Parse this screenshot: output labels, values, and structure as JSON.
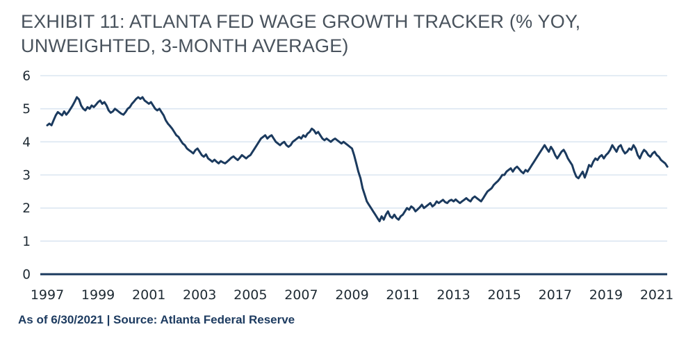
{
  "title": {
    "line1": "EXHIBIT 11: ATLANTA FED WAGE GROWTH TRACKER (% YOY,",
    "line2": "UNWEIGHTED, 3-MONTH AVERAGE)"
  },
  "footer": {
    "text": "As of 6/30/2021 | Source: Atlanta Federal Reserve"
  },
  "colors": {
    "line": "#1b3a5e",
    "axis": "#1b3a5e",
    "grid": "#dbe6f1",
    "tick_text": "#1e2a33",
    "title_text": "#48525c",
    "footer_text": "#1d3b60",
    "background": "#ffffff"
  },
  "chart_data": {
    "type": "line",
    "title": "EXHIBIT 11: ATLANTA FED WAGE GROWTH TRACKER (% YOY, UNWEIGHTED, 3-MONTH AVERAGE)",
    "series_name": "Atlanta Fed Wage Growth Tracker (unweighted, 3-month average)",
    "x_start": 1997,
    "frequency": "monthly",
    "x_end_label": "6/30/2021",
    "x_tick_labels": [
      "1997",
      "1999",
      "2001",
      "2003",
      "2005",
      "2007",
      "2009",
      "2011",
      "2013",
      "2015",
      "2017",
      "2019",
      "2021"
    ],
    "y_ticks": [
      0,
      1,
      2,
      3,
      4,
      5,
      6
    ],
    "ylim": [
      0,
      6
    ],
    "grid": "horizontal",
    "legend": "none",
    "values": [
      4.5,
      4.55,
      4.5,
      4.65,
      4.8,
      4.9,
      4.85,
      4.8,
      4.92,
      4.82,
      4.9,
      5.0,
      5.1,
      5.22,
      5.35,
      5.28,
      5.1,
      5.0,
      4.95,
      5.05,
      5.0,
      5.1,
      5.05,
      5.12,
      5.2,
      5.25,
      5.15,
      5.2,
      5.1,
      4.95,
      4.88,
      4.92,
      5.0,
      4.95,
      4.9,
      4.85,
      4.82,
      4.9,
      5.0,
      5.05,
      5.15,
      5.22,
      5.3,
      5.35,
      5.3,
      5.35,
      5.25,
      5.2,
      5.15,
      5.2,
      5.1,
      5.0,
      4.95,
      5.0,
      4.9,
      4.8,
      4.65,
      4.55,
      4.48,
      4.4,
      4.3,
      4.2,
      4.15,
      4.05,
      3.95,
      3.9,
      3.8,
      3.75,
      3.7,
      3.65,
      3.75,
      3.8,
      3.7,
      3.6,
      3.55,
      3.62,
      3.5,
      3.45,
      3.4,
      3.46,
      3.4,
      3.35,
      3.42,
      3.38,
      3.35,
      3.4,
      3.46,
      3.52,
      3.56,
      3.5,
      3.45,
      3.52,
      3.6,
      3.55,
      3.5,
      3.56,
      3.6,
      3.7,
      3.8,
      3.9,
      4.0,
      4.1,
      4.15,
      4.2,
      4.1,
      4.16,
      4.2,
      4.1,
      4.0,
      3.95,
      3.9,
      3.96,
      4.0,
      3.9,
      3.85,
      3.9,
      4.0,
      4.05,
      4.1,
      4.15,
      4.1,
      4.2,
      4.15,
      4.25,
      4.3,
      4.4,
      4.35,
      4.25,
      4.3,
      4.2,
      4.1,
      4.05,
      4.1,
      4.05,
      4.0,
      4.06,
      4.1,
      4.05,
      4.0,
      3.95,
      4.0,
      3.95,
      3.9,
      3.85,
      3.8,
      3.6,
      3.35,
      3.1,
      2.9,
      2.6,
      2.4,
      2.2,
      2.1,
      2.0,
      1.9,
      1.8,
      1.7,
      1.6,
      1.75,
      1.65,
      1.8,
      1.9,
      1.75,
      1.7,
      1.8,
      1.7,
      1.65,
      1.75,
      1.8,
      1.9,
      2.0,
      1.95,
      2.05,
      2.0,
      1.9,
      1.96,
      2.02,
      2.1,
      2.0,
      2.05,
      2.1,
      2.15,
      2.05,
      2.1,
      2.2,
      2.15,
      2.2,
      2.25,
      2.18,
      2.15,
      2.22,
      2.25,
      2.2,
      2.26,
      2.2,
      2.15,
      2.2,
      2.25,
      2.3,
      2.24,
      2.2,
      2.3,
      2.35,
      2.3,
      2.25,
      2.2,
      2.3,
      2.4,
      2.5,
      2.55,
      2.6,
      2.7,
      2.76,
      2.82,
      2.9,
      3.0,
      3.0,
      3.1,
      3.15,
      3.2,
      3.1,
      3.2,
      3.25,
      3.18,
      3.1,
      3.05,
      3.15,
      3.1,
      3.2,
      3.3,
      3.4,
      3.5,
      3.6,
      3.7,
      3.8,
      3.9,
      3.8,
      3.7,
      3.85,
      3.75,
      3.6,
      3.5,
      3.6,
      3.7,
      3.76,
      3.65,
      3.5,
      3.4,
      3.3,
      3.1,
      2.95,
      2.9,
      3.0,
      3.1,
      2.92,
      3.1,
      3.3,
      3.25,
      3.4,
      3.5,
      3.45,
      3.55,
      3.6,
      3.5,
      3.6,
      3.66,
      3.76,
      3.9,
      3.8,
      3.7,
      3.85,
      3.9,
      3.75,
      3.65,
      3.7,
      3.8,
      3.76,
      3.9,
      3.8,
      3.6,
      3.5,
      3.65,
      3.76,
      3.7,
      3.6,
      3.55,
      3.65,
      3.7,
      3.6,
      3.55,
      3.45,
      3.4,
      3.35,
      3.25
    ]
  }
}
